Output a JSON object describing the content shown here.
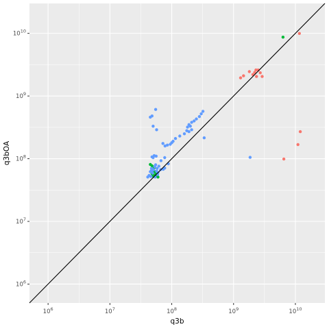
{
  "chart_data": {
    "type": "scatter",
    "title": "",
    "xlabel": "q3b",
    "ylabel": "q3bOA",
    "x_scale": "log10",
    "y_scale": "log10",
    "xlim": [
      500000,
      30000000000
    ],
    "ylim": [
      500000,
      30000000000
    ],
    "x_ticks": [
      {
        "value": 1000000,
        "base": "10",
        "exp": "6"
      },
      {
        "value": 10000000,
        "base": "10",
        "exp": "7"
      },
      {
        "value": 100000000,
        "base": "10",
        "exp": "8"
      },
      {
        "value": 1000000000,
        "base": "10",
        "exp": "9"
      },
      {
        "value": 10000000000,
        "base": "10",
        "exp": "10"
      }
    ],
    "y_ticks": [
      {
        "value": 1000000,
        "base": "10",
        "exp": "6"
      },
      {
        "value": 10000000,
        "base": "10",
        "exp": "7"
      },
      {
        "value": 100000000,
        "base": "10",
        "exp": "8"
      },
      {
        "value": 1000000000,
        "base": "10",
        "exp": "9"
      },
      {
        "value": 10000000000,
        "base": "10",
        "exp": "10"
      }
    ],
    "grid": true,
    "legend": "none",
    "panel_color": "#ebebeb",
    "reference_line": {
      "slope": 1,
      "intercept": 0,
      "color": "#000000"
    },
    "series": [
      {
        "color": "#f8766d",
        "points": [
          [
            11600000000,
            9950000000
          ],
          [
            12000000000,
            270000000
          ],
          [
            11000000000,
            168000000
          ],
          [
            6500000000,
            99000000
          ],
          [
            2700000000,
            2350000000
          ],
          [
            2900000000,
            2050000000
          ],
          [
            2500000000,
            2600000000
          ],
          [
            2300000000,
            2600000000
          ],
          [
            2200000000,
            2380000000
          ],
          [
            2050000000,
            2200000000
          ],
          [
            1800000000,
            2450000000
          ],
          [
            2350000000,
            2050000000
          ],
          [
            1450000000,
            2100000000
          ],
          [
            1300000000,
            1950000000
          ]
        ]
      },
      {
        "color": "#00ba38",
        "points": [
          [
            6300000000,
            8700000000
          ],
          [
            45000000,
            81000000
          ],
          [
            48000000,
            77000000
          ],
          [
            52000000,
            72000000
          ],
          [
            47000000,
            64000000
          ],
          [
            53000000,
            62000000
          ],
          [
            50000000,
            60000000
          ],
          [
            56000000,
            58000000
          ],
          [
            49000000,
            56000000
          ],
          [
            54000000,
            55000000
          ],
          [
            58000000,
            53000000
          ],
          [
            51000000,
            52000000
          ],
          [
            60000000,
            51000000
          ],
          [
            55000000,
            61000000
          ],
          [
            48000000,
            58000000
          ]
        ]
      },
      {
        "color": "#619cff",
        "points": [
          [
            55000000,
            610000000
          ],
          [
            48000000,
            480000000
          ],
          [
            45000000,
            460000000
          ],
          [
            50000000,
            330000000
          ],
          [
            57000000,
            290000000
          ],
          [
            320000000,
            570000000
          ],
          [
            300000000,
            520000000
          ],
          [
            280000000,
            470000000
          ],
          [
            250000000,
            430000000
          ],
          [
            230000000,
            400000000
          ],
          [
            210000000,
            380000000
          ],
          [
            190000000,
            350000000
          ],
          [
            200000000,
            330000000
          ],
          [
            180000000,
            320000000
          ],
          [
            210000000,
            290000000
          ],
          [
            190000000,
            270000000
          ],
          [
            175000000,
            280000000
          ],
          [
            160000000,
            250000000
          ],
          [
            135000000,
            230000000
          ],
          [
            115000000,
            210000000
          ],
          [
            105000000,
            190000000
          ],
          [
            100000000,
            180000000
          ],
          [
            95000000,
            170000000
          ],
          [
            85000000,
            165000000
          ],
          [
            78000000,
            160000000
          ],
          [
            72000000,
            175000000
          ],
          [
            335000000,
            215000000
          ],
          [
            1850000000,
            105000000
          ],
          [
            52000000,
            112000000
          ],
          [
            56000000,
            110000000
          ],
          [
            48000000,
            107000000
          ],
          [
            50000000,
            104000000
          ],
          [
            77000000,
            104000000
          ],
          [
            67000000,
            93000000
          ],
          [
            88000000,
            83000000
          ],
          [
            62000000,
            76000000
          ],
          [
            77000000,
            71000000
          ],
          [
            73000000,
            68000000
          ],
          [
            66000000,
            67000000
          ],
          [
            55000000,
            80000000
          ],
          [
            53000000,
            75000000
          ],
          [
            58000000,
            70000000
          ],
          [
            47000000,
            70000000
          ],
          [
            51000000,
            67000000
          ],
          [
            45000000,
            62000000
          ],
          [
            57000000,
            63000000
          ],
          [
            49000000,
            59000000
          ],
          [
            59000000,
            56000000
          ],
          [
            43000000,
            54000000
          ],
          [
            46000000,
            52000000
          ],
          [
            54000000,
            51000000
          ],
          [
            41000000,
            51000000
          ],
          [
            48000000,
            65000000
          ],
          [
            60000000,
            60000000
          ]
        ]
      }
    ]
  }
}
